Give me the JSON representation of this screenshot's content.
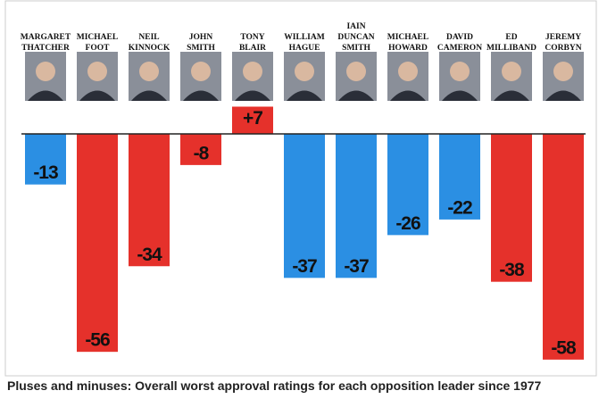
{
  "chart_data": {
    "type": "bar",
    "caption": "Pluses and minuses: Overall worst approval ratings for each opposition leader since 1977",
    "categories": [
      "MARGARET THATCHER",
      "MICHAEL FOOT",
      "NEIL KINNOCK",
      "JOHN SMITH",
      "TONY BLAIR",
      "WILLIAM HAGUE",
      "IAIN DUNCAN SMITH",
      "MICHAEL HOWARD",
      "DAVID CAMERON",
      "ED MILLIBAND",
      "JEREMY CORBYN"
    ],
    "values": [
      -13,
      -56,
      -34,
      -8,
      7,
      -37,
      -37,
      -26,
      -22,
      -38,
      -58
    ],
    "value_labels": [
      "-13",
      "-56",
      "-34",
      "-8",
      "+7",
      "-37",
      "-37",
      "-26",
      "-22",
      "-38",
      "-58"
    ],
    "colors": [
      "#2b8fe3",
      "#e5312b",
      "#e5312b",
      "#e5312b",
      "#e5312b",
      "#2b8fe3",
      "#2b8fe3",
      "#2b8fe3",
      "#2b8fe3",
      "#e5312b",
      "#e5312b"
    ]
  }
}
